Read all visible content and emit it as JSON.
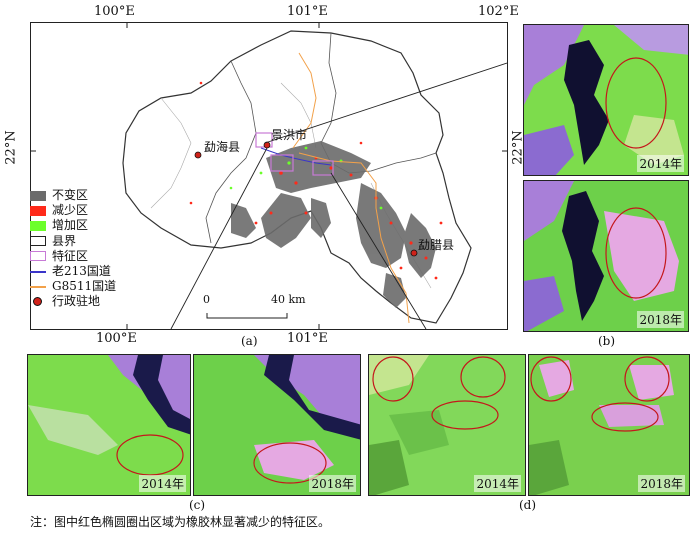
{
  "map": {
    "lon_labels_top": [
      "100°E",
      "101°E",
      "102°E"
    ],
    "lon_labels_bottom": [
      "100°E",
      "101°E"
    ],
    "lat_label": "22°N",
    "cities": [
      "勐海县",
      "景洪市",
      "勐腊县"
    ],
    "scale": {
      "zero": "0",
      "distance": "40 km"
    },
    "panel_label": "(a)"
  },
  "legend": {
    "items": [
      {
        "label": "不变区",
        "color": "#6b6b6b"
      },
      {
        "label": "减少区",
        "color": "#ff2a1a"
      },
      {
        "label": "增加区",
        "color": "#6cff2a"
      },
      {
        "label": "县界",
        "color": "#222222"
      },
      {
        "label": "特征区",
        "color": "#c77ad6"
      },
      {
        "label": "老213国道",
        "color": "#3a35c9"
      },
      {
        "label": "G8511国道",
        "color": "#f2a14a"
      },
      {
        "label": "行政驻地",
        "color": "#d0221a"
      }
    ]
  },
  "panels": {
    "b": {
      "label": "(b)",
      "years": [
        "2014年",
        "2018年"
      ]
    },
    "c": {
      "label": "(c)",
      "years": [
        "2014年",
        "2018年"
      ]
    },
    "d": {
      "label": "(d)",
      "years": [
        "2014年",
        "2018年"
      ]
    }
  },
  "note": "注：图中红色椭圆圈出区域为橡胶林显著减少的特征区。"
}
